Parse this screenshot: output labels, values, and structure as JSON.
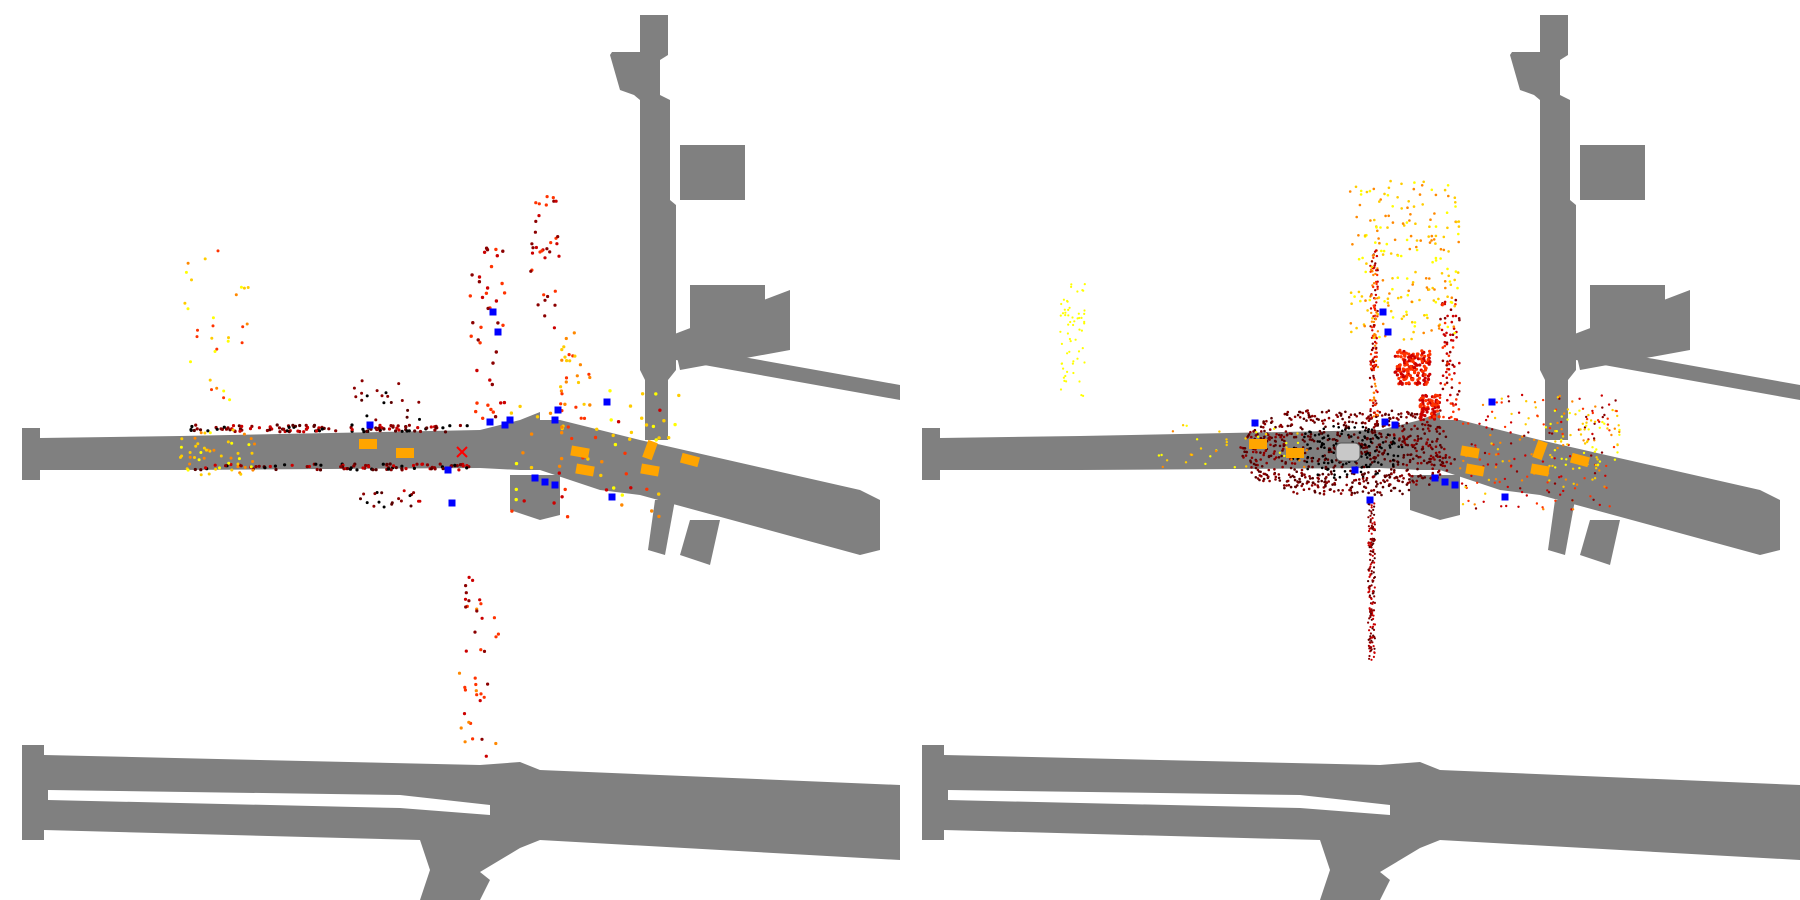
{
  "colors": {
    "background": "#ffffff",
    "road": "#808080",
    "vehicle": "#ffa500",
    "pedestrian": "#0000ff",
    "ego_marker": "#ff0000",
    "ego_vehicle": "#c8c8c8"
  },
  "panels": [
    {
      "name": "panel-left",
      "point_density": "sparse",
      "has_ego_marker": true
    },
    {
      "name": "panel-right",
      "point_density": "dense",
      "has_ego_marker": false
    }
  ],
  "point_colormap": [
    "#000000",
    "#5a0000",
    "#8b0000",
    "#cc0000",
    "#ff3300",
    "#ff8800",
    "#ffcc00",
    "#ffff00"
  ]
}
